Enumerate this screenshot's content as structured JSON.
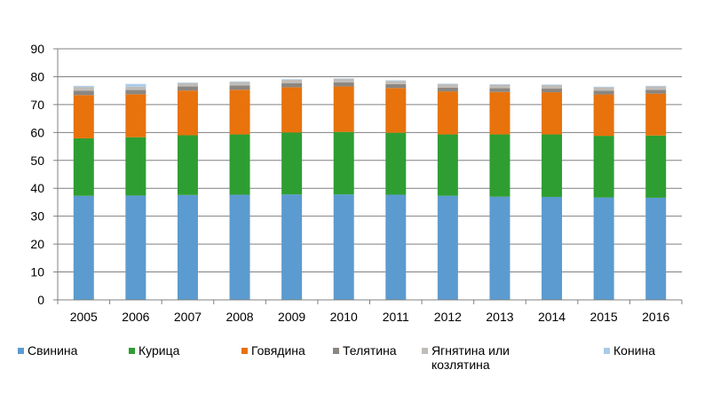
{
  "chart_data": {
    "type": "bar",
    "stacked": true,
    "title": "",
    "xlabel": "",
    "ylabel": "",
    "ylim": [
      0,
      90
    ],
    "yticks": [
      0,
      10,
      20,
      30,
      40,
      50,
      60,
      70,
      80,
      90
    ],
    "grid": true,
    "legend_position": "bottom",
    "categories": [
      "2005",
      "2006",
      "2007",
      "2008",
      "2009",
      "2010",
      "2011",
      "2012",
      "2013",
      "2014",
      "2015",
      "2016"
    ],
    "series": [
      {
        "name": "Свинина",
        "color": "#5b9bd0",
        "values": [
          37.3,
          37.4,
          37.6,
          37.7,
          37.8,
          37.8,
          37.7,
          37.3,
          37.0,
          36.9,
          36.7,
          36.6
        ]
      },
      {
        "name": "Курица",
        "color": "#2e9e32",
        "values": [
          20.6,
          20.9,
          21.4,
          21.6,
          22.2,
          22.4,
          22.2,
          22.0,
          22.3,
          22.4,
          22.1,
          22.3
        ]
      },
      {
        "name": "Говядина",
        "color": "#e8720c",
        "values": [
          15.5,
          15.4,
          16.0,
          16.0,
          16.2,
          16.3,
          16.0,
          15.4,
          15.2,
          15.1,
          14.8,
          15.0
        ]
      },
      {
        "name": "Телятина",
        "color": "#8c8680",
        "values": [
          1.6,
          1.5,
          1.5,
          1.5,
          1.5,
          1.5,
          1.4,
          1.4,
          1.4,
          1.4,
          1.4,
          1.4
        ]
      },
      {
        "name": "Ягнятина или козлятина",
        "color": "#c0bcb8",
        "values": [
          1.3,
          1.2,
          1.2,
          1.3,
          1.2,
          1.2,
          1.2,
          1.2,
          1.2,
          1.2,
          1.2,
          1.2
        ]
      },
      {
        "name": "Конина",
        "color": "#a9cbea",
        "values": [
          0.4,
          1.0,
          0.2,
          0.2,
          0.2,
          0.2,
          0.2,
          0.2,
          0.2,
          0.2,
          0.2,
          0.2
        ]
      }
    ]
  },
  "legend": {
    "items": [
      {
        "lines": [
          "Свинина"
        ],
        "icon": "legend-swatch"
      },
      {
        "lines": [
          "Курица"
        ],
        "icon": "legend-swatch"
      },
      {
        "lines": [
          "Говядина"
        ],
        "icon": "legend-swatch"
      },
      {
        "lines": [
          "Телятина"
        ],
        "icon": "legend-swatch"
      },
      {
        "lines": [
          "Ягнятина или",
          "козлятина"
        ],
        "icon": "legend-swatch"
      },
      {
        "lines": [
          "Конина"
        ],
        "icon": "legend-swatch"
      }
    ]
  },
  "style": {
    "axis_color": "#808080",
    "grid_color": "#808080",
    "background": "#ffffff"
  }
}
